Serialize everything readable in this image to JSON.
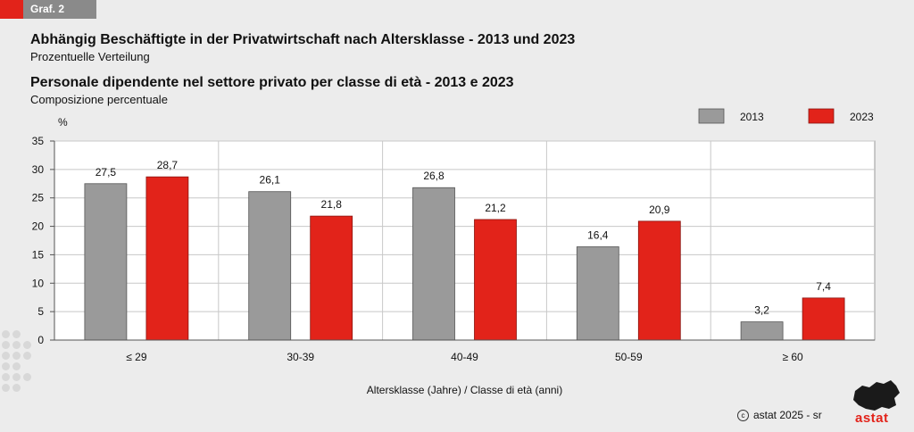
{
  "header": {
    "tag": "Graf. 2",
    "title_de": "Abhängig Beschäftigte in der Privatwirtschaft nach Altersklasse - 2013 und 2023",
    "subtitle_de": "Prozentuelle Verteilung",
    "title_it": "Personale dipendente nel settore privato per classe di età - 2013 e 2023",
    "subtitle_it": "Composizione percentuale"
  },
  "footer": {
    "copyright": "astat 2025 - sr",
    "logo_text": "astat"
  },
  "colors": {
    "s2013": "#9a9a9a",
    "s2023": "#e2231a",
    "brand": "#e2231a"
  },
  "chart_data": {
    "type": "bar",
    "categories": [
      "≤ 29",
      "30-39",
      "40-49",
      "50-59",
      "≥ 60"
    ],
    "series": [
      {
        "name": "2013",
        "values": [
          27.5,
          26.1,
          26.8,
          16.4,
          3.2
        ]
      },
      {
        "name": "2023",
        "values": [
          28.7,
          21.8,
          21.2,
          20.9,
          7.4
        ]
      }
    ],
    "value_labels": [
      [
        "27,5",
        "26,1",
        "26,8",
        "16,4",
        "3,2"
      ],
      [
        "28,7",
        "21,8",
        "21,2",
        "20,9",
        "7,4"
      ]
    ],
    "ylabel": "%",
    "xlabel": "Altersklasse (Jahre) / Classe di età (anni)",
    "ylim": [
      0,
      35
    ],
    "yticks": [
      0,
      5,
      10,
      15,
      20,
      25,
      30,
      35
    ],
    "grid": true,
    "legend_position": "top-right"
  }
}
